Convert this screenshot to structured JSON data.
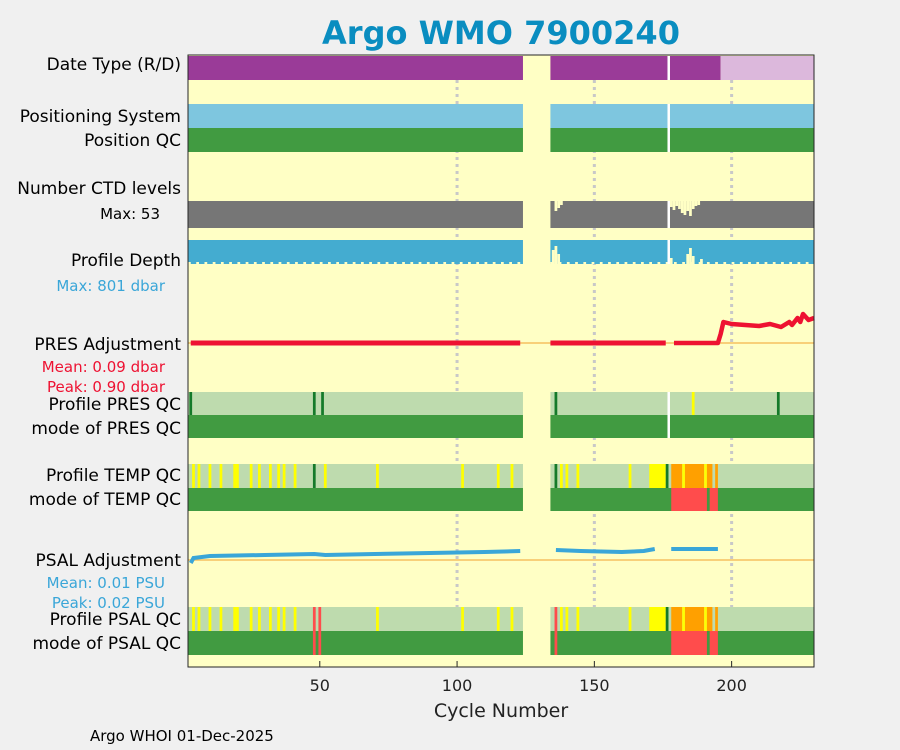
{
  "colors": {
    "title": "#0a8dc0",
    "background": "#ffffc5",
    "figure": "#f0f0f0",
    "realtime": "#9a3b98",
    "delayed": "#dcb8dc",
    "positioning": "#7ec6df",
    "qc_good": "#419b41",
    "qc_good_light": "#bedbae",
    "qc_dark": "#157a2a",
    "qc_yellow": "#ffff00",
    "qc_orange": "#ffa000",
    "qc_red": "#ff4c4c",
    "ctd_gray": "#767676",
    "depth_blue": "#44acd0",
    "pres_red": "#ee1232",
    "psal_blue": "#3aa6d8",
    "zero_line": "#f5c060",
    "cycle_guide": "#c8c8c8"
  },
  "chart_data": {
    "type": "table",
    "title": "Argo WMO 7900240",
    "xlabel": "Cycle Number",
    "xlim": [
      2,
      230
    ],
    "xticks": [
      50,
      100,
      150,
      200
    ],
    "gap_cycles": [
      124,
      134
    ],
    "delayed_mode_from_cycle": 196,
    "rows": [
      {
        "id": "date_type",
        "label": "Date Type (R/D)"
      },
      {
        "id": "positioning",
        "label": "Positioning System"
      },
      {
        "id": "position_qc",
        "label": "Position QC"
      },
      {
        "id": "ctd_levels",
        "label": "Number CTD levels",
        "stat": "Max: 53",
        "max_levels": 53
      },
      {
        "id": "profile_depth",
        "label": "Profile Depth",
        "stat": "Max:  801 dbar",
        "max_dbar": 801
      },
      {
        "id": "pres_adjustment",
        "label": "PRES Adjustment",
        "stats": [
          "Mean: 0.09 dbar",
          "Peak: 0.90 dbar"
        ],
        "mean": 0.09,
        "peak": 0.9
      },
      {
        "id": "profile_pres_qc",
        "label": "Profile PRES QC"
      },
      {
        "id": "mode_pres_qc",
        "label": "mode of PRES QC"
      },
      {
        "id": "profile_temp_qc",
        "label": "Profile TEMP QC"
      },
      {
        "id": "mode_temp_qc",
        "label": "mode of TEMP QC"
      },
      {
        "id": "psal_adjustment",
        "label": "PSAL Adjustment",
        "stats": [
          "Mean: 0.01 PSU",
          "Peak: 0.02 PSU"
        ],
        "mean": 0.01,
        "peak": 0.02
      },
      {
        "id": "profile_psal_qc",
        "label": "Profile PSAL QC"
      },
      {
        "id": "mode_psal_qc",
        "label": "mode of PSAL QC"
      }
    ],
    "qc_marks": {
      "pres_profile": [
        {
          "cycle": 3,
          "flag": "dark"
        },
        {
          "cycle": 48,
          "flag": "dark"
        },
        {
          "cycle": 51,
          "flag": "dark"
        },
        {
          "cycle": 136,
          "flag": "dark"
        },
        {
          "cycle": 186,
          "flag": "yellow"
        },
        {
          "cycle": 217,
          "flag": "dark"
        }
      ],
      "temp_profile": [
        {
          "cycle": 4,
          "flag": "yellow"
        },
        {
          "cycle": 6,
          "flag": "yellow"
        },
        {
          "cycle": 10,
          "flag": "yellow"
        },
        {
          "cycle": 14,
          "flag": "yellow"
        },
        {
          "cycle": 19,
          "flag": "yellow"
        },
        {
          "cycle": 20,
          "flag": "yellow"
        },
        {
          "cycle": 25,
          "flag": "yellow"
        },
        {
          "cycle": 28,
          "flag": "yellow"
        },
        {
          "cycle": 32,
          "flag": "yellow"
        },
        {
          "cycle": 35,
          "flag": "yellow"
        },
        {
          "cycle": 37,
          "flag": "yellow"
        },
        {
          "cycle": 41,
          "flag": "yellow"
        },
        {
          "cycle": 48,
          "flag": "dark"
        },
        {
          "cycle": 52,
          "flag": "yellow"
        },
        {
          "cycle": 71,
          "flag": "yellow"
        },
        {
          "cycle": 102,
          "flag": "yellow"
        },
        {
          "cycle": 115,
          "flag": "yellow"
        },
        {
          "cycle": 120,
          "flag": "yellow"
        },
        {
          "cycle": 136,
          "flag": "dark"
        },
        {
          "cycle": 138,
          "flag": "yellow"
        },
        {
          "cycle": 140,
          "flag": "yellow"
        },
        {
          "cycle": 144,
          "flag": "yellow"
        },
        {
          "cycle": 163,
          "flag": "yellow"
        }
      ],
      "temp_profile_ranges": [
        {
          "from": 170,
          "to": 176,
          "flag": "yellow"
        },
        {
          "from": 176,
          "to": 177,
          "flag": "dark"
        },
        {
          "from": 178,
          "to": 182,
          "flag": "orange"
        },
        {
          "from": 182,
          "to": 183,
          "flag": "yellow"
        },
        {
          "from": 183,
          "to": 190,
          "flag": "orange"
        },
        {
          "from": 190,
          "to": 191,
          "flag": "yellow"
        },
        {
          "from": 191,
          "to": 193,
          "flag": "orange"
        },
        {
          "from": 194,
          "to": 195,
          "flag": "orange"
        }
      ],
      "temp_mode_ranges": [
        {
          "from": 178,
          "to": 191,
          "flag": "red"
        },
        {
          "from": 192,
          "to": 195,
          "flag": "red"
        }
      ],
      "psal_profile": [
        {
          "cycle": 4,
          "flag": "yellow"
        },
        {
          "cycle": 6,
          "flag": "yellow"
        },
        {
          "cycle": 10,
          "flag": "yellow"
        },
        {
          "cycle": 14,
          "flag": "yellow"
        },
        {
          "cycle": 19,
          "flag": "yellow"
        },
        {
          "cycle": 20,
          "flag": "yellow"
        },
        {
          "cycle": 25,
          "flag": "yellow"
        },
        {
          "cycle": 28,
          "flag": "yellow"
        },
        {
          "cycle": 32,
          "flag": "yellow"
        },
        {
          "cycle": 35,
          "flag": "yellow"
        },
        {
          "cycle": 37,
          "flag": "yellow"
        },
        {
          "cycle": 41,
          "flag": "yellow"
        },
        {
          "cycle": 48,
          "flag": "red"
        },
        {
          "cycle": 50,
          "flag": "red"
        },
        {
          "cycle": 71,
          "flag": "yellow"
        },
        {
          "cycle": 102,
          "flag": "yellow"
        },
        {
          "cycle": 115,
          "flag": "yellow"
        },
        {
          "cycle": 120,
          "flag": "yellow"
        },
        {
          "cycle": 136,
          "flag": "red"
        },
        {
          "cycle": 138,
          "flag": "yellow"
        },
        {
          "cycle": 140,
          "flag": "yellow"
        },
        {
          "cycle": 144,
          "flag": "yellow"
        },
        {
          "cycle": 163,
          "flag": "yellow"
        }
      ],
      "psal_profile_ranges": [
        {
          "from": 170,
          "to": 176,
          "flag": "yellow"
        },
        {
          "from": 176,
          "to": 177,
          "flag": "dark"
        },
        {
          "from": 178,
          "to": 182,
          "flag": "orange"
        },
        {
          "from": 182,
          "to": 183,
          "flag": "yellow"
        },
        {
          "from": 183,
          "to": 190,
          "flag": "orange"
        },
        {
          "from": 190,
          "to": 191,
          "flag": "yellow"
        },
        {
          "from": 191,
          "to": 193,
          "flag": "orange"
        },
        {
          "from": 194,
          "to": 195,
          "flag": "orange"
        }
      ],
      "psal_mode_ranges": [
        {
          "from": 178,
          "to": 191,
          "flag": "red"
        },
        {
          "from": 192,
          "to": 195,
          "flag": "red"
        }
      ],
      "psal_mode_marks": [
        {
          "cycle": 48,
          "flag": "red"
        },
        {
          "cycle": 50,
          "flag": "red"
        },
        {
          "cycle": 136,
          "flag": "red"
        }
      ]
    },
    "footer": "Argo WHOI 01-Dec-2025"
  }
}
